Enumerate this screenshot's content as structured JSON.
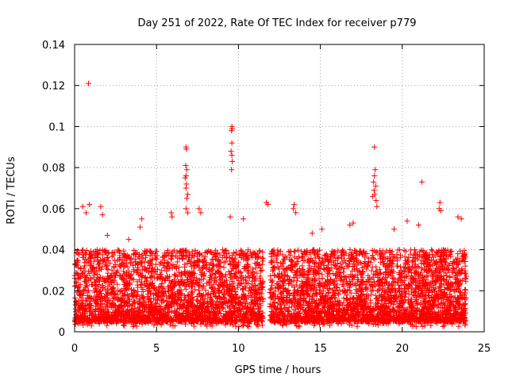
{
  "chart_data": {
    "type": "scatter",
    "title": "Day 251 of 2022, Rate Of TEC Index for receiver p779",
    "xlabel": "GPS time / hours",
    "ylabel": "ROTI / TECUs",
    "xlim": [
      0,
      25
    ],
    "ylim": [
      0,
      0.14
    ],
    "xticks": [
      0,
      5,
      10,
      15,
      20,
      25
    ],
    "yticks": [
      0,
      0.02,
      0.04,
      0.06,
      0.08,
      0.1,
      0.12,
      0.14
    ],
    "xtick_labels": [
      "0",
      "5",
      "10",
      "15",
      "20",
      "25"
    ],
    "ytick_labels": [
      "0",
      "0.02",
      "0.04",
      "0.06",
      "0.08",
      "0.1",
      "0.12",
      "0.14"
    ],
    "grid": true,
    "marker": "+",
    "marker_color": "#ff0000",
    "baseline_band": {
      "x_range": [
        0,
        23.9
      ],
      "typical_range": [
        0.005,
        0.04
      ],
      "gap_hours": [
        11.5,
        11.9
      ],
      "description_points_per_hour": 240
    },
    "series": [
      {
        "name": "p779",
        "points": [
          [
            0.85,
            0.121
          ],
          [
            9.6,
            0.1
          ],
          [
            9.62,
            0.099
          ],
          [
            9.58,
            0.098
          ],
          [
            9.6,
            0.092
          ],
          [
            9.55,
            0.088
          ],
          [
            9.6,
            0.086
          ],
          [
            9.62,
            0.083
          ],
          [
            9.58,
            0.079
          ],
          [
            6.8,
            0.09
          ],
          [
            6.82,
            0.089
          ],
          [
            6.78,
            0.081
          ],
          [
            6.85,
            0.079
          ],
          [
            6.8,
            0.076
          ],
          [
            6.75,
            0.075
          ],
          [
            6.83,
            0.072
          ],
          [
            6.8,
            0.07
          ],
          [
            6.9,
            0.067
          ],
          [
            6.85,
            0.065
          ],
          [
            6.8,
            0.06
          ],
          [
            6.9,
            0.058
          ],
          [
            18.3,
            0.09
          ],
          [
            18.35,
            0.079
          ],
          [
            18.3,
            0.076
          ],
          [
            18.25,
            0.073
          ],
          [
            18.38,
            0.071
          ],
          [
            18.28,
            0.069
          ],
          [
            18.32,
            0.067
          ],
          [
            18.2,
            0.066
          ],
          [
            18.4,
            0.064
          ],
          [
            18.45,
            0.061
          ],
          [
            21.2,
            0.073
          ],
          [
            22.3,
            0.063
          ],
          [
            22.25,
            0.06
          ],
          [
            22.35,
            0.059
          ],
          [
            11.7,
            0.063
          ],
          [
            11.8,
            0.062
          ],
          [
            13.4,
            0.062
          ],
          [
            13.35,
            0.06
          ],
          [
            13.5,
            0.058
          ],
          [
            0.5,
            0.061
          ],
          [
            0.9,
            0.062
          ],
          [
            0.7,
            0.058
          ],
          [
            1.6,
            0.061
          ],
          [
            1.7,
            0.057
          ],
          [
            5.9,
            0.058
          ],
          [
            5.95,
            0.056
          ],
          [
            7.6,
            0.06
          ],
          [
            7.7,
            0.058
          ],
          [
            9.5,
            0.056
          ],
          [
            10.3,
            0.055
          ],
          [
            4.1,
            0.055
          ],
          [
            4.0,
            0.051
          ],
          [
            23.4,
            0.056
          ],
          [
            23.6,
            0.055
          ],
          [
            16.8,
            0.052
          ],
          [
            17.0,
            0.053
          ],
          [
            20.3,
            0.054
          ],
          [
            21.0,
            0.052
          ],
          [
            15.1,
            0.05
          ],
          [
            14.5,
            0.048
          ],
          [
            19.5,
            0.05
          ],
          [
            2.0,
            0.047
          ],
          [
            3.3,
            0.045
          ]
        ]
      }
    ]
  }
}
